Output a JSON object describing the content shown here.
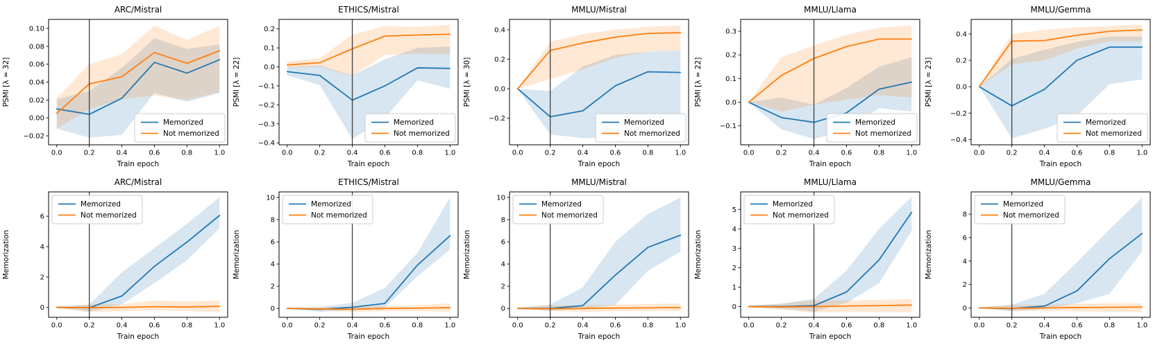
{
  "figure": {
    "background": "#ffffff",
    "rows": [
      {
        "metric": "PSMI"
      },
      {
        "metric": "Memorization"
      }
    ]
  },
  "colors": {
    "memorized": "#1f77b4",
    "not_memorized": "#ff7f0e",
    "vline": "#3f3f3f",
    "axes": "#000000",
    "legend_border": "#cccccc",
    "band_opacity": 0.18
  },
  "legend_labels": [
    "Memorized",
    "Not memorized"
  ],
  "chart_data": [
    {
      "type": "line",
      "title": "ARC/Mistral",
      "xlabel": "Train epoch",
      "ylabel": "PSMI [λ = 32]",
      "x": [
        0.0,
        0.2,
        0.4,
        0.6,
        0.8,
        1.0
      ],
      "xlim": [
        -0.05,
        1.05
      ],
      "ylim": [
        -0.03,
        0.11
      ],
      "xtick_values": [
        0.0,
        0.2,
        0.4,
        0.6,
        0.8,
        1.0
      ],
      "xtick_labels": [
        "0.0",
        "0.2",
        "0.4",
        "0.6",
        "0.8",
        "1.0"
      ],
      "ytick_values": [
        -0.02,
        0.0,
        0.02,
        0.04,
        0.06,
        0.08,
        0.1
      ],
      "ytick_labels": [
        "−0.02",
        "0.00",
        "0.02",
        "0.04",
        "0.06",
        "0.08",
        "0.10"
      ],
      "vline_x": 0.2,
      "legend_position": "lower-right",
      "series": [
        {
          "name": "Memorized",
          "color": "#1f77b4",
          "values": [
            0.01,
            0.004,
            0.022,
            0.062,
            0.05,
            0.065
          ],
          "band_lower": [
            -0.012,
            -0.022,
            -0.019,
            0.028,
            0.018,
            0.028
          ],
          "band_upper": [
            0.021,
            0.03,
            0.056,
            0.089,
            0.077,
            0.082
          ]
        },
        {
          "name": "Not memorized",
          "color": "#ff7f0e",
          "values": [
            0.005,
            0.038,
            0.046,
            0.073,
            0.061,
            0.075
          ],
          "band_lower": [
            -0.012,
            0.01,
            0.021,
            0.025,
            0.02,
            0.029
          ],
          "band_upper": [
            0.022,
            0.06,
            0.071,
            0.103,
            0.087,
            0.103
          ]
        }
      ]
    },
    {
      "type": "line",
      "title": "ETHICS/Mistral",
      "xlabel": "Train epoch",
      "ylabel": "PSMI [λ = 22]",
      "x": [
        0.0,
        0.2,
        0.4,
        0.6,
        0.8,
        1.0
      ],
      "xlim": [
        -0.05,
        1.05
      ],
      "ylim": [
        -0.41,
        0.25
      ],
      "xtick_values": [
        0.0,
        0.2,
        0.4,
        0.6,
        0.8,
        1.0
      ],
      "xtick_labels": [
        "0.0",
        "0.2",
        "0.4",
        "0.6",
        "0.8",
        "1.0"
      ],
      "ytick_values": [
        -0.4,
        -0.3,
        -0.2,
        -0.1,
        0.0,
        0.1,
        0.2
      ],
      "ytick_labels": [
        "−0.4",
        "−0.3",
        "−0.2",
        "−0.1",
        "0.0",
        "0.1",
        "0.2"
      ],
      "vline_x": 0.4,
      "legend_position": "lower-right",
      "series": [
        {
          "name": "Memorized",
          "color": "#1f77b4",
          "values": [
            -0.025,
            -0.045,
            -0.175,
            -0.1,
            -0.005,
            -0.008
          ],
          "band_lower": [
            -0.045,
            -0.095,
            -0.38,
            -0.27,
            -0.07,
            -0.115
          ],
          "band_upper": [
            0.0,
            0.008,
            -0.045,
            0.04,
            0.1,
            0.107
          ]
        },
        {
          "name": "Not memorized",
          "color": "#ff7f0e",
          "values": [
            0.01,
            0.022,
            0.095,
            0.162,
            0.168,
            0.172
          ],
          "band_lower": [
            -0.005,
            0.0,
            -0.048,
            0.062,
            0.07,
            0.065
          ],
          "band_upper": [
            0.028,
            0.046,
            0.17,
            0.215,
            0.21,
            0.222
          ]
        }
      ]
    },
    {
      "type": "line",
      "title": "MMLU/Mistral",
      "xlabel": "Train epoch",
      "ylabel": "PSMI [λ = 30]",
      "x": [
        0.0,
        0.2,
        0.4,
        0.6,
        0.8,
        1.0
      ],
      "xlim": [
        -0.05,
        1.05
      ],
      "ylim": [
        -0.38,
        0.47
      ],
      "xtick_values": [
        0.0,
        0.2,
        0.4,
        0.6,
        0.8,
        1.0
      ],
      "xtick_labels": [
        "0.0",
        "0.2",
        "0.4",
        "0.6",
        "0.8",
        "1.0"
      ],
      "ytick_values": [
        -0.2,
        0.0,
        0.2,
        0.4
      ],
      "ytick_labels": [
        "−0.2",
        "0.0",
        "0.2",
        "0.4"
      ],
      "vline_x": 0.2,
      "legend_position": "lower-right",
      "series": [
        {
          "name": "Memorized",
          "color": "#1f77b4",
          "values": [
            0.0,
            -0.19,
            -0.15,
            0.02,
            0.115,
            0.11
          ],
          "band_lower": [
            0.0,
            -0.31,
            -0.335,
            -0.33,
            -0.325,
            -0.3
          ],
          "band_upper": [
            0.0,
            -0.015,
            0.15,
            0.23,
            0.25,
            0.26
          ]
        },
        {
          "name": "Not memorized",
          "color": "#ff7f0e",
          "values": [
            0.0,
            0.26,
            0.31,
            0.35,
            0.375,
            0.38
          ],
          "band_lower": [
            0.0,
            0.065,
            0.13,
            0.21,
            0.25,
            0.26
          ],
          "band_upper": [
            0.0,
            0.32,
            0.37,
            0.4,
            0.42,
            0.43
          ]
        }
      ]
    },
    {
      "type": "line",
      "title": "MMLU/Llama",
      "xlabel": "Train epoch",
      "ylabel": "PSMI [λ = 22]",
      "x": [
        0.0,
        0.2,
        0.4,
        0.6,
        0.8,
        1.0
      ],
      "xlim": [
        -0.05,
        1.05
      ],
      "ylim": [
        -0.18,
        0.35
      ],
      "xtick_values": [
        0.0,
        0.2,
        0.4,
        0.6,
        0.8,
        1.0
      ],
      "xtick_labels": [
        "0.0",
        "0.2",
        "0.4",
        "0.6",
        "0.8",
        "1.0"
      ],
      "ytick_values": [
        -0.1,
        0.0,
        0.1,
        0.2,
        0.3
      ],
      "ytick_labels": [
        "−0.1",
        "0.0",
        "0.1",
        "0.2",
        "0.3"
      ],
      "vline_x": 0.4,
      "legend_position": "lower-right",
      "series": [
        {
          "name": "Memorized",
          "color": "#1f77b4",
          "values": [
            0.0,
            -0.065,
            -0.085,
            -0.045,
            0.055,
            0.085
          ],
          "band_lower": [
            0.0,
            -0.115,
            -0.155,
            -0.12,
            -0.025,
            -0.04
          ],
          "band_upper": [
            0.0,
            0.02,
            -0.01,
            0.06,
            0.15,
            0.19
          ]
        },
        {
          "name": "Not memorized",
          "color": "#ff7f0e",
          "values": [
            0.0,
            0.113,
            0.185,
            0.235,
            0.267,
            0.267
          ],
          "band_lower": [
            0.0,
            -0.04,
            -0.01,
            0.01,
            0.03,
            0.02
          ],
          "band_upper": [
            0.0,
            0.19,
            0.24,
            0.285,
            0.315,
            0.325
          ]
        }
      ]
    },
    {
      "type": "line",
      "title": "MMLU/Gemma",
      "xlabel": "Train epoch",
      "ylabel": "PSMI [λ = 23]",
      "x": [
        0.0,
        0.2,
        0.4,
        0.6,
        0.8,
        1.0
      ],
      "xlim": [
        -0.05,
        1.05
      ],
      "ylim": [
        -0.44,
        0.51
      ],
      "xtick_values": [
        0.0,
        0.2,
        0.4,
        0.6,
        0.8,
        1.0
      ],
      "xtick_labels": [
        "0.0",
        "0.2",
        "0.4",
        "0.6",
        "0.8",
        "1.0"
      ],
      "ytick_values": [
        -0.4,
        -0.2,
        0.0,
        0.2,
        0.4
      ],
      "ytick_labels": [
        "−0.4",
        "−0.2",
        "0.0",
        "0.2",
        "0.4"
      ],
      "vline_x": 0.2,
      "legend_position": "lower-right",
      "series": [
        {
          "name": "Memorized",
          "color": "#1f77b4",
          "values": [
            0.0,
            -0.145,
            -0.02,
            0.2,
            0.3,
            0.3
          ],
          "band_lower": [
            0.0,
            -0.39,
            -0.32,
            -0.22,
            0.02,
            0.055
          ],
          "band_upper": [
            0.0,
            0.21,
            0.28,
            0.34,
            0.38,
            0.38
          ]
        },
        {
          "name": "Not memorized",
          "color": "#ff7f0e",
          "values": [
            0.0,
            0.345,
            0.35,
            0.39,
            0.42,
            0.43
          ],
          "band_lower": [
            0.0,
            0.17,
            0.2,
            0.29,
            0.345,
            0.345
          ],
          "band_upper": [
            0.0,
            0.4,
            0.43,
            0.45,
            0.46,
            0.47
          ]
        }
      ]
    },
    {
      "type": "line",
      "title": "ARC/Mistral",
      "xlabel": "Train epoch",
      "ylabel": "Memorization",
      "x": [
        0.0,
        0.2,
        0.4,
        0.6,
        0.8,
        1.0
      ],
      "xlim": [
        -0.05,
        1.05
      ],
      "ylim": [
        -0.65,
        7.6
      ],
      "xtick_values": [
        0.0,
        0.2,
        0.4,
        0.6,
        0.8,
        1.0
      ],
      "xtick_labels": [
        "0.0",
        "0.2",
        "0.4",
        "0.6",
        "0.8",
        "1.0"
      ],
      "ytick_values": [
        0,
        2,
        4,
        6
      ],
      "ytick_labels": [
        "0",
        "2",
        "4",
        "6"
      ],
      "vline_x": 0.2,
      "legend_position": "upper-left",
      "series": [
        {
          "name": "Memorized",
          "color": "#1f77b4",
          "values": [
            0.0,
            -0.02,
            0.75,
            2.7,
            4.3,
            6.05
          ],
          "band_lower": [
            -0.02,
            -0.28,
            0.2,
            1.6,
            3.1,
            5.2
          ],
          "band_upper": [
            0.05,
            0.18,
            2.3,
            3.9,
            5.5,
            7.25
          ]
        },
        {
          "name": "Not memorized",
          "color": "#ff7f0e",
          "values": [
            0.0,
            -0.02,
            0.0,
            0.05,
            0.03,
            0.07
          ],
          "band_lower": [
            -0.05,
            -0.3,
            -0.25,
            -0.2,
            -0.25,
            -0.3
          ],
          "band_upper": [
            0.05,
            0.2,
            0.2,
            0.45,
            0.4,
            0.45
          ]
        }
      ]
    },
    {
      "type": "line",
      "title": "ETHICS/Mistral",
      "xlabel": "Train epoch",
      "ylabel": "Memorization",
      "x": [
        0.0,
        0.2,
        0.4,
        0.6,
        0.8,
        1.0
      ],
      "xlim": [
        -0.05,
        1.05
      ],
      "ylim": [
        -0.8,
        10.5
      ],
      "xtick_values": [
        0.0,
        0.2,
        0.4,
        0.6,
        0.8,
        1.0
      ],
      "xtick_labels": [
        "0.0",
        "0.2",
        "0.4",
        "0.6",
        "0.8",
        "1.0"
      ],
      "ytick_values": [
        0,
        2,
        4,
        6,
        8,
        10
      ],
      "ytick_labels": [
        "0",
        "2",
        "4",
        "6",
        "8",
        "10"
      ],
      "vline_x": 0.4,
      "legend_position": "upper-left",
      "series": [
        {
          "name": "Memorized",
          "color": "#1f77b4",
          "values": [
            0.0,
            -0.08,
            0.1,
            0.45,
            3.9,
            6.55
          ],
          "band_lower": [
            -0.02,
            -0.3,
            -0.15,
            0.1,
            2.9,
            5.3
          ],
          "band_upper": [
            0.05,
            0.12,
            0.5,
            1.85,
            5.0,
            10.0
          ]
        },
        {
          "name": "Not memorized",
          "color": "#ff7f0e",
          "values": [
            0.0,
            -0.05,
            -0.08,
            0.0,
            0.02,
            0.07
          ],
          "band_lower": [
            -0.05,
            -0.2,
            -0.3,
            -0.25,
            -0.25,
            -0.3
          ],
          "band_upper": [
            0.05,
            0.12,
            0.15,
            0.2,
            0.3,
            0.45
          ]
        }
      ]
    },
    {
      "type": "line",
      "title": "MMLU/Mistral",
      "xlabel": "Train epoch",
      "ylabel": "Memorization",
      "x": [
        0.0,
        0.2,
        0.4,
        0.6,
        0.8,
        1.0
      ],
      "xlim": [
        -0.05,
        1.05
      ],
      "ylim": [
        -0.8,
        10.5
      ],
      "xtick_values": [
        0.0,
        0.2,
        0.4,
        0.6,
        0.8,
        1.0
      ],
      "xtick_labels": [
        "0.0",
        "0.2",
        "0.4",
        "0.6",
        "0.8",
        "1.0"
      ],
      "ytick_values": [
        0,
        2,
        4,
        6,
        8,
        10
      ],
      "ytick_labels": [
        "0",
        "2",
        "4",
        "6",
        "8",
        "10"
      ],
      "vline_x": 0.2,
      "legend_position": "upper-left",
      "series": [
        {
          "name": "Memorized",
          "color": "#1f77b4",
          "values": [
            0.0,
            0.0,
            0.25,
            3.0,
            5.5,
            6.6
          ],
          "band_lower": [
            -0.02,
            -0.2,
            0.0,
            0.3,
            3.4,
            5.1
          ],
          "band_upper": [
            0.05,
            0.35,
            1.9,
            6.0,
            8.5,
            10.0
          ]
        },
        {
          "name": "Not memorized",
          "color": "#ff7f0e",
          "values": [
            0.0,
            -0.03,
            0.0,
            0.03,
            0.05,
            0.08
          ],
          "band_lower": [
            -0.05,
            -0.25,
            -0.3,
            -0.25,
            -0.25,
            -0.25
          ],
          "band_upper": [
            0.05,
            0.3,
            0.25,
            0.35,
            0.4,
            0.45
          ]
        }
      ]
    },
    {
      "type": "line",
      "title": "MMLU/Llama",
      "xlabel": "Train epoch",
      "ylabel": "Memorization",
      "x": [
        0.0,
        0.2,
        0.4,
        0.6,
        0.8,
        1.0
      ],
      "xlim": [
        -0.05,
        1.05
      ],
      "ylim": [
        -0.55,
        5.9
      ],
      "xtick_values": [
        0.0,
        0.2,
        0.4,
        0.6,
        0.8,
        1.0
      ],
      "xtick_labels": [
        "0.0",
        "0.2",
        "0.4",
        "0.6",
        "0.8",
        "1.0"
      ],
      "ytick_values": [
        0,
        1,
        2,
        3,
        4,
        5
      ],
      "ytick_labels": [
        "0",
        "1",
        "2",
        "3",
        "4",
        "5"
      ],
      "vline_x": 0.4,
      "legend_position": "upper-left",
      "series": [
        {
          "name": "Memorized",
          "color": "#1f77b4",
          "values": [
            0.0,
            0.0,
            0.05,
            0.75,
            2.4,
            4.85
          ],
          "band_lower": [
            -0.02,
            -0.12,
            -0.25,
            0.2,
            1.2,
            3.9
          ],
          "band_upper": [
            0.05,
            0.15,
            0.4,
            1.85,
            4.0,
            5.65
          ]
        },
        {
          "name": "Not memorized",
          "color": "#ff7f0e",
          "values": [
            0.0,
            -0.02,
            0.0,
            0.03,
            0.05,
            0.08
          ],
          "band_lower": [
            -0.05,
            -0.15,
            -0.3,
            -0.28,
            -0.28,
            -0.3
          ],
          "band_upper": [
            0.05,
            0.15,
            0.32,
            0.32,
            0.35,
            0.38
          ]
        }
      ]
    },
    {
      "type": "line",
      "title": "MMLU/Gemma",
      "xlabel": "Train epoch",
      "ylabel": "Memorization",
      "x": [
        0.0,
        0.2,
        0.4,
        0.6,
        0.8,
        1.0
      ],
      "xlim": [
        -0.05,
        1.05
      ],
      "ylim": [
        -0.8,
        9.9
      ],
      "xtick_values": [
        0.0,
        0.2,
        0.4,
        0.6,
        0.8,
        1.0
      ],
      "xtick_labels": [
        "0.0",
        "0.2",
        "0.4",
        "0.6",
        "0.8",
        "1.0"
      ],
      "ytick_values": [
        0,
        2,
        4,
        6,
        8
      ],
      "ytick_labels": [
        "0",
        "2",
        "4",
        "6",
        "8"
      ],
      "vline_x": 0.2,
      "legend_position": "upper-left",
      "series": [
        {
          "name": "Memorized",
          "color": "#1f77b4",
          "values": [
            0.0,
            -0.05,
            0.15,
            1.45,
            4.2,
            6.35
          ],
          "band_lower": [
            -0.02,
            -0.28,
            -0.1,
            0.4,
            1.2,
            4.8
          ],
          "band_upper": [
            0.05,
            0.28,
            1.2,
            3.9,
            6.7,
            9.4
          ]
        },
        {
          "name": "Not memorized",
          "color": "#ff7f0e",
          "values": [
            0.0,
            -0.03,
            0.0,
            0.03,
            0.05,
            0.07
          ],
          "band_lower": [
            -0.05,
            -0.25,
            -0.25,
            -0.3,
            -0.35,
            -0.35
          ],
          "band_upper": [
            0.05,
            0.25,
            0.25,
            0.35,
            0.4,
            0.4
          ]
        }
      ]
    }
  ]
}
